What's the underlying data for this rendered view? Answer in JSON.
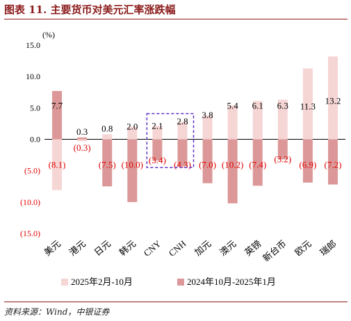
{
  "title": "图表 11. 主要货币对美元汇率涨跌幅",
  "source": "资料来源：Wind，中银证券",
  "chart_data": {
    "type": "bar",
    "unit_label": "(%)",
    "categories": [
      "美元",
      "港元",
      "日元",
      "韩元",
      "CNY",
      "CNH",
      "加元",
      "澳元",
      "英镑",
      "新台币",
      "欧元",
      "瑞郎"
    ],
    "series": [
      {
        "name": "2025年2月-10月",
        "color": "#f6d5d5",
        "values": [
          -8.1,
          -0.3,
          0.8,
          2.0,
          2.1,
          2.8,
          3.8,
          5.4,
          6.1,
          6.3,
          11.3,
          13.2
        ],
        "labels": [
          "(8.1)",
          "(0.3)",
          "0.8",
          "2.0",
          "2.1",
          "2.8",
          "3.8",
          "5.4",
          "6.1",
          "6.3",
          "11.3",
          "13.2"
        ]
      },
      {
        "name": "2024年10月-2025年1月",
        "color": "#dc9898",
        "values": [
          7.7,
          0.3,
          -7.5,
          -10.0,
          -3.4,
          -4.3,
          -7.0,
          -10.2,
          -7.4,
          -3.2,
          -6.9,
          -7.2
        ],
        "labels": [
          "7.7",
          "0.3",
          "(7.5)",
          "(10.0)",
          "(3.4)",
          "(4.3)",
          "(7.0)",
          "(10.2)",
          "(7.4)",
          "(3.2)",
          "(6.9)",
          "(7.2)"
        ]
      }
    ],
    "yticks": [
      15,
      10,
      5,
      0,
      -5,
      -10,
      -15
    ],
    "ytick_labels": [
      "15.0",
      "10.0",
      "5.0",
      "0.0",
      "(5.0)",
      "(10.0)",
      "(15.0)"
    ],
    "ylim": [
      -15,
      15
    ],
    "highlight_categories": [
      "CNY",
      "CNH"
    ],
    "colors": {
      "positive_label": "#000000",
      "negative_label": "#e00000",
      "highlight_box": "#5b2fc7"
    },
    "legend_position": "bottom"
  }
}
